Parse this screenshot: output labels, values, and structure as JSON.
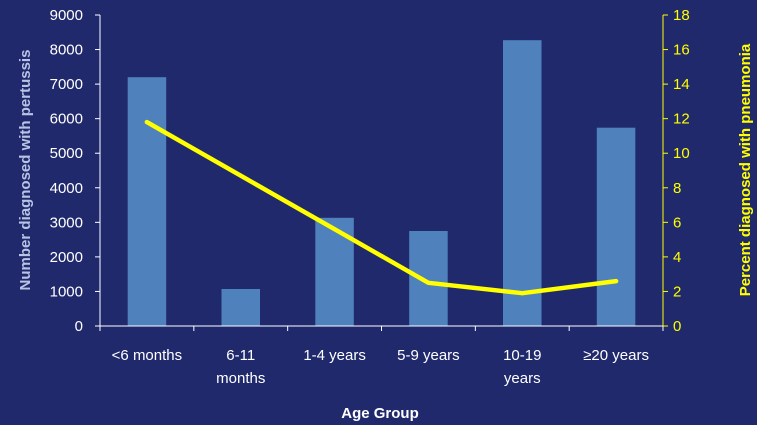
{
  "chart_data": {
    "type": "bar",
    "xlabel": "Age Group",
    "ylabel": "Number diagnosed with pertussis",
    "y2label": "Percent diagnosed with pneumonia",
    "categories": [
      [
        "<6 months"
      ],
      [
        "6-11",
        "months"
      ],
      [
        "1-4 years"
      ],
      [
        "5-9 years"
      ],
      [
        "10-19",
        "years"
      ],
      [
        "≥20 years"
      ]
    ],
    "series": [
      {
        "name": "Number diagnosed with pertussis",
        "type": "bar",
        "axis": "left",
        "values": [
          7200,
          1070,
          3130,
          2750,
          8270,
          5740
        ]
      },
      {
        "name": "Percent diagnosed with pneumonia",
        "type": "line",
        "axis": "right",
        "values": [
          11.8,
          8.7,
          5.6,
          2.5,
          1.9,
          2.6
        ]
      }
    ],
    "ylim": [
      0,
      9000
    ],
    "yticks": [
      0,
      1000,
      2000,
      3000,
      4000,
      5000,
      6000,
      7000,
      8000,
      9000
    ],
    "y2lim": [
      0,
      18
    ],
    "y2ticks": [
      0,
      2,
      4,
      6,
      8,
      10,
      12,
      14,
      16,
      18
    ],
    "grid": false,
    "legend": "none",
    "colors": {
      "background": "#21296d",
      "bar": "#4f81bd",
      "line": "#ffff00",
      "axis": "#ffffff",
      "right_axis": "#ffff00",
      "left_title": "#b8c4e4"
    }
  }
}
